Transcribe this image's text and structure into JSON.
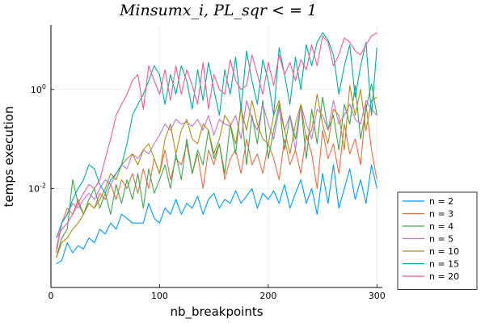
{
  "chart_data": {
    "type": "line",
    "title": "Minsumx_i, PL_sqr < = 1",
    "xlabel": "nb_breakpoints",
    "ylabel": "temps execution",
    "xscale": "linear",
    "yscale": "log",
    "xlim": [
      0,
      305
    ],
    "ylim": [
      0.0001,
      20
    ],
    "xticks": [
      0,
      100,
      200,
      300
    ],
    "yticks": [
      {
        "value": 0.01,
        "label": "10^-2"
      },
      {
        "value": 1,
        "label": "10^0"
      }
    ],
    "grid": true,
    "legend_position": "outside-bottom-right",
    "x": [
      5,
      10,
      15,
      20,
      25,
      30,
      35,
      40,
      45,
      50,
      55,
      60,
      65,
      70,
      75,
      80,
      85,
      90,
      95,
      100,
      105,
      110,
      115,
      120,
      125,
      130,
      135,
      140,
      145,
      150,
      155,
      160,
      165,
      170,
      175,
      180,
      185,
      190,
      195,
      200,
      205,
      210,
      215,
      220,
      225,
      230,
      235,
      240,
      245,
      250,
      255,
      260,
      265,
      270,
      275,
      280,
      285,
      290,
      295,
      300
    ],
    "series": [
      {
        "name": "n = 2",
        "color": "#009AFA",
        "values": [
          0.0003,
          0.00035,
          0.0008,
          0.0005,
          0.0007,
          0.0006,
          0.001,
          0.0008,
          0.0015,
          0.0012,
          0.002,
          0.0015,
          0.003,
          0.0025,
          0.002,
          0.002,
          0.002,
          0.005,
          0.0025,
          0.002,
          0.004,
          0.003,
          0.006,
          0.003,
          0.005,
          0.004,
          0.007,
          0.003,
          0.006,
          0.008,
          0.004,
          0.006,
          0.005,
          0.009,
          0.005,
          0.007,
          0.01,
          0.004,
          0.008,
          0.006,
          0.009,
          0.005,
          0.012,
          0.004,
          0.008,
          0.015,
          0.005,
          0.01,
          0.003,
          0.02,
          0.005,
          0.03,
          0.004,
          0.01,
          0.025,
          0.006,
          0.015,
          0.005,
          0.03,
          0.01
        ]
      },
      {
        "name": "n = 3",
        "color": "#E36F47",
        "values": [
          0.0005,
          0.002,
          0.004,
          0.003,
          0.006,
          0.003,
          0.005,
          0.004,
          0.008,
          0.006,
          0.012,
          0.006,
          0.015,
          0.01,
          0.02,
          0.008,
          0.025,
          0.01,
          0.04,
          0.02,
          0.06,
          0.015,
          0.04,
          0.03,
          0.08,
          0.02,
          0.05,
          0.01,
          0.06,
          0.03,
          0.08,
          0.015,
          0.04,
          0.06,
          0.02,
          0.1,
          0.03,
          0.05,
          0.02,
          0.08,
          0.04,
          0.015,
          0.1,
          0.03,
          0.06,
          0.02,
          0.12,
          0.05,
          0.01,
          0.15,
          0.04,
          0.08,
          0.02,
          0.2,
          0.05,
          0.1,
          0.03,
          0.5,
          0.06,
          0.015
        ]
      },
      {
        "name": "n = 4",
        "color": "#3EA44E",
        "values": [
          0.0004,
          0.001,
          0.0015,
          0.015,
          0.005,
          0.003,
          0.006,
          0.01,
          0.004,
          0.008,
          0.003,
          0.012,
          0.005,
          0.015,
          0.006,
          0.02,
          0.004,
          0.025,
          0.008,
          0.015,
          0.03,
          0.01,
          0.05,
          0.015,
          0.1,
          0.02,
          0.06,
          0.03,
          0.15,
          0.04,
          0.08,
          0.02,
          0.2,
          0.05,
          0.5,
          0.03,
          0.3,
          0.08,
          0.6,
          0.04,
          0.15,
          0.5,
          0.06,
          0.3,
          0.1,
          0.5,
          0.04,
          0.4,
          0.08,
          0.7,
          0.15,
          0.3,
          0.06,
          0.5,
          0.2,
          1.2,
          0.1,
          0.4,
          1.3,
          0.3
        ]
      },
      {
        "name": "n = 5",
        "color": "#C271D2",
        "values": [
          0.0006,
          0.002,
          0.003,
          0.005,
          0.004,
          0.006,
          0.008,
          0.006,
          0.01,
          0.015,
          0.012,
          0.02,
          0.03,
          0.025,
          0.05,
          0.04,
          0.06,
          0.05,
          0.08,
          0.12,
          0.2,
          0.15,
          0.25,
          0.2,
          0.22,
          0.18,
          0.25,
          0.15,
          0.3,
          0.12,
          0.25,
          0.2,
          0.18,
          0.3,
          0.1,
          0.6,
          0.25,
          0.15,
          0.5,
          0.2,
          0.1,
          0.4,
          0.15,
          0.3,
          0.06,
          0.5,
          0.2,
          0.1,
          0.4,
          0.3,
          0.15,
          0.6,
          0.2,
          0.3,
          0.5,
          0.25,
          0.2,
          0.6,
          0.4,
          0.3
        ]
      },
      {
        "name": "n = 10",
        "color": "#AC8D18",
        "values": [
          0.0004,
          0.0008,
          0.001,
          0.0015,
          0.002,
          0.003,
          0.005,
          0.004,
          0.006,
          0.01,
          0.02,
          0.015,
          0.03,
          0.04,
          0.05,
          0.03,
          0.06,
          0.08,
          0.04,
          0.02,
          0.1,
          0.2,
          0.05,
          0.15,
          0.25,
          0.1,
          0.08,
          0.2,
          0.15,
          0.05,
          0.1,
          0.3,
          0.2,
          0.08,
          0.4,
          0.15,
          0.6,
          0.2,
          0.1,
          0.08,
          0.3,
          0.6,
          0.15,
          0.05,
          0.2,
          0.5,
          0.1,
          0.15,
          0.8,
          0.2,
          0.08,
          0.4,
          0.3,
          0.06,
          1.2,
          0.3,
          1.0,
          0.15,
          0.6,
          0.7
        ]
      },
      {
        "name": "n = 15",
        "color": "#00A9AD",
        "values": [
          0.001,
          0.002,
          0.003,
          0.006,
          0.01,
          0.015,
          0.03,
          0.025,
          0.012,
          0.008,
          0.015,
          0.02,
          0.03,
          0.08,
          0.3,
          0.5,
          0.8,
          1.5,
          3.0,
          2.0,
          0.5,
          2.0,
          0.8,
          3.0,
          1.5,
          0.4,
          2.5,
          0.6,
          3.5,
          1.0,
          0.3,
          2.5,
          0.8,
          4.5,
          0.4,
          6.0,
          1.5,
          0.5,
          4.0,
          1.5,
          0.3,
          7.0,
          2.0,
          0.5,
          4.5,
          1.0,
          8.0,
          3.0,
          9.0,
          14.0,
          10.0,
          5.0,
          0.8,
          3.0,
          8.0,
          0.7,
          3.0,
          9.0,
          0.3,
          7.0
        ]
      },
      {
        "name": "n = 20",
        "color": "#ED5D92",
        "values": [
          0.001,
          0.0015,
          0.002,
          0.003,
          0.005,
          0.008,
          0.012,
          0.01,
          0.015,
          0.04,
          0.1,
          0.3,
          0.5,
          0.8,
          1.5,
          2.0,
          0.4,
          3.0,
          1.5,
          0.8,
          2.5,
          0.6,
          3.0,
          0.8,
          2.5,
          1.2,
          0.5,
          3.5,
          0.4,
          2.0,
          1.0,
          0.8,
          4.0,
          1.5,
          1.0,
          1.2,
          5.0,
          2.0,
          0.8,
          3.5,
          1.2,
          5.0,
          2.0,
          3.5,
          1.5,
          4.0,
          2.5,
          8.0,
          3.0,
          12.0,
          9.0,
          3.0,
          5.0,
          11.0,
          9.0,
          6.0,
          5.0,
          8.0,
          12.0,
          14.0
        ]
      }
    ]
  }
}
